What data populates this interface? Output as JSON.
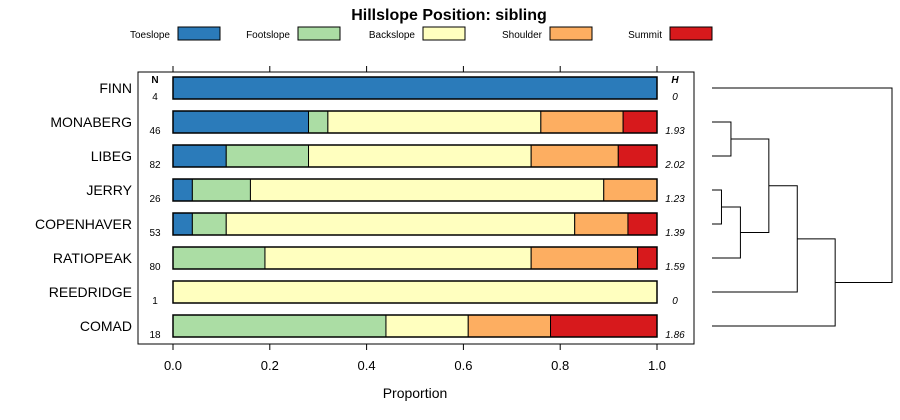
{
  "chart_data": {
    "type": "bar",
    "orientation": "horizontal",
    "stacked": true,
    "title": "Hillslope Position: sibling",
    "xlabel": "Proportion",
    "ylabel": "",
    "xlim": [
      0,
      1
    ],
    "xticks": [
      "0.0",
      "0.2",
      "0.4",
      "0.6",
      "0.8",
      "1.0"
    ],
    "legend_position": "top",
    "n_header": "N",
    "h_header": "H",
    "series": [
      {
        "name": "Toeslope",
        "color": "#2b7bba"
      },
      {
        "name": "Footslope",
        "color": "#abdda4"
      },
      {
        "name": "Backslope",
        "color": "#ffffbf"
      },
      {
        "name": "Shoulder",
        "color": "#fdae61"
      },
      {
        "name": "Summit",
        "color": "#d7191c"
      }
    ],
    "categories": [
      "FINN",
      "MONABERG",
      "LIBEG",
      "JERRY",
      "COPENHAVER",
      "RATIOPEAK",
      "REEDRIDGE",
      "COMAD"
    ],
    "rows": [
      {
        "label": "FINN",
        "n": "4",
        "h": "0",
        "values": [
          1.0,
          0.0,
          0.0,
          0.0,
          0.0
        ]
      },
      {
        "label": "MONABERG",
        "n": "46",
        "h": "1.93",
        "values": [
          0.28,
          0.04,
          0.44,
          0.17,
          0.07
        ]
      },
      {
        "label": "LIBEG",
        "n": "82",
        "h": "2.02",
        "values": [
          0.11,
          0.17,
          0.46,
          0.18,
          0.08
        ]
      },
      {
        "label": "JERRY",
        "n": "26",
        "h": "1.23",
        "values": [
          0.04,
          0.12,
          0.73,
          0.11,
          0.0
        ]
      },
      {
        "label": "COPENHAVER",
        "n": "53",
        "h": "1.39",
        "values": [
          0.04,
          0.07,
          0.72,
          0.11,
          0.06
        ]
      },
      {
        "label": "RATIOPEAK",
        "n": "80",
        "h": "1.59",
        "values": [
          0.0,
          0.19,
          0.55,
          0.22,
          0.04
        ]
      },
      {
        "label": "REEDRIDGE",
        "n": "1",
        "h": "0",
        "values": [
          0.0,
          0.0,
          1.0,
          0.0,
          0.0
        ]
      },
      {
        "label": "COMAD",
        "n": "18",
        "h": "1.86",
        "values": [
          0.0,
          0.44,
          0.17,
          0.17,
          0.22
        ]
      }
    ],
    "dendrogram": {
      "leaf_order": [
        "FINN",
        "MONABERG",
        "LIBEG",
        "JERRY",
        "COPENHAVER",
        "RATIOPEAK",
        "REEDRIDGE",
        "COMAD"
      ],
      "merges": [
        {
          "id": "m1",
          "left": "JERRY",
          "right": "COPENHAVER",
          "height": 0.02
        },
        {
          "id": "m2",
          "left": "MONABERG",
          "right": "LIBEG",
          "height": 0.04
        },
        {
          "id": "m3",
          "left": "m1",
          "right": "RATIOPEAK",
          "height": 0.06
        },
        {
          "id": "m4",
          "left": "m2",
          "right": "m3",
          "height": 0.12
        },
        {
          "id": "m5",
          "left": "m4",
          "right": "REEDRIDGE",
          "height": 0.18
        },
        {
          "id": "m6",
          "left": "m5",
          "right": "COMAD",
          "height": 0.26
        },
        {
          "id": "m7",
          "left": "FINN",
          "right": "m6",
          "height": 0.38
        }
      ]
    }
  }
}
